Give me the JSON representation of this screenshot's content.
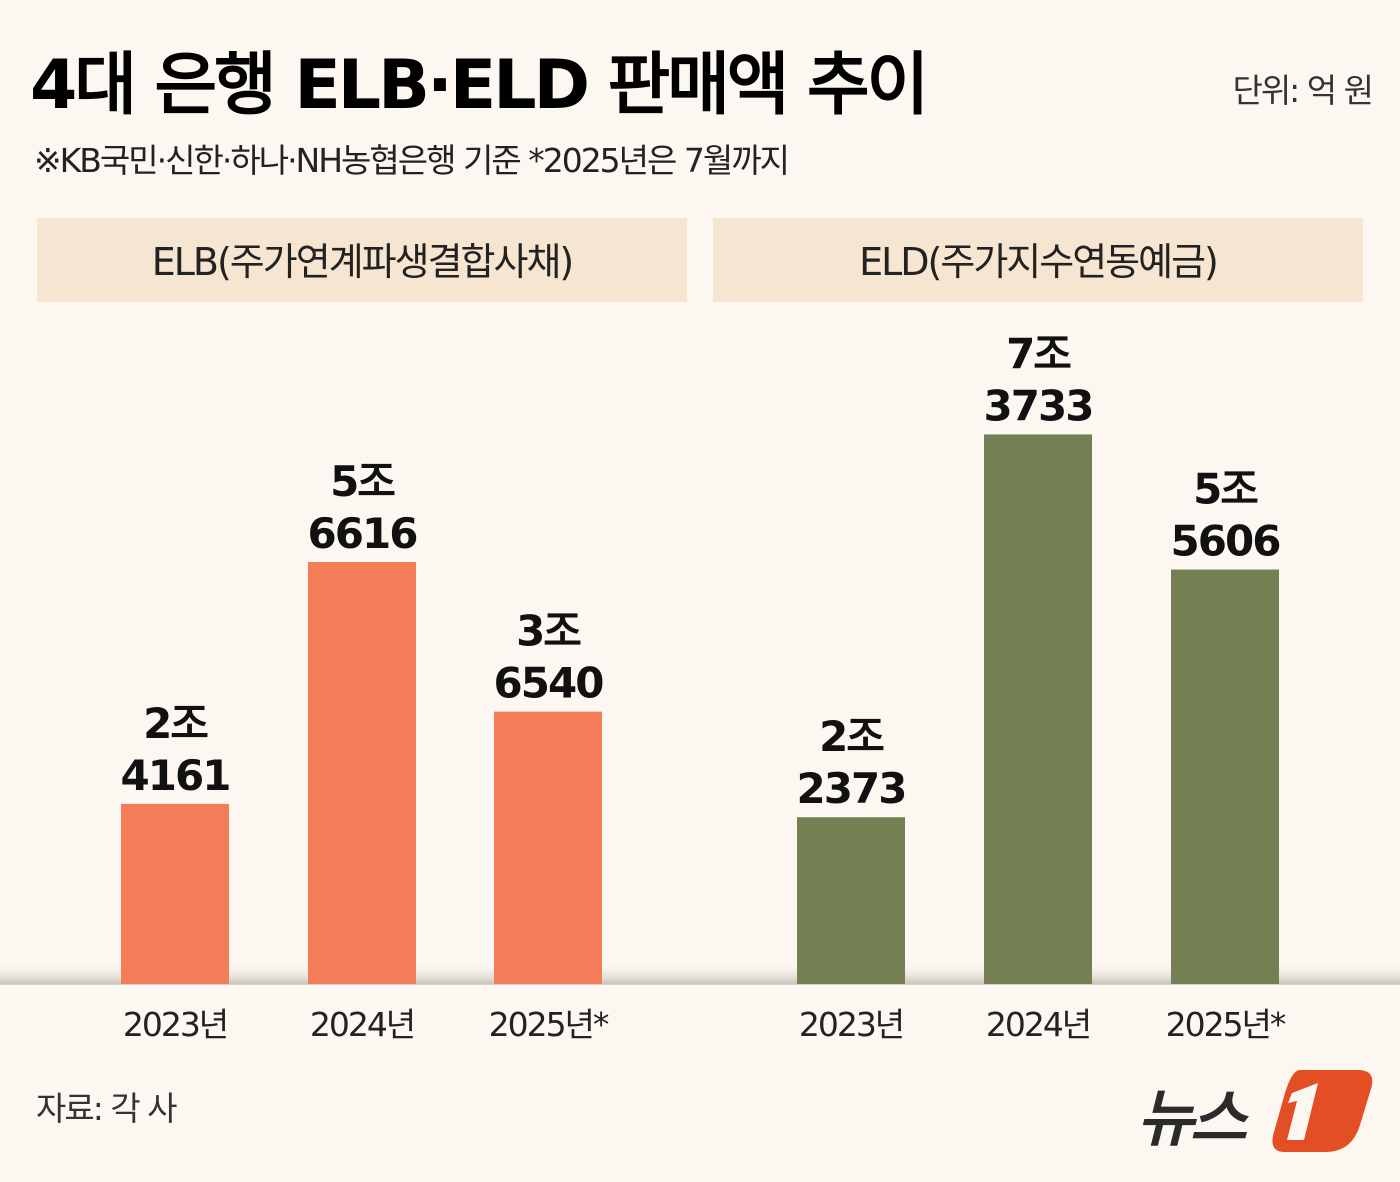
{
  "title": "4대 은행 ELB·ELD 판매액 추이",
  "subtitle": "※KB국민·신한·하나·NH농협은행 기준   *2025년은 7월까지",
  "unit": "단위: 억 원",
  "source": "자료: 각 사",
  "logo": {
    "text": "뉴스1",
    "color": "#e34e24"
  },
  "chart_data": [
    {
      "type": "bar",
      "title": "ELB(주가연계파생결합사채)",
      "categories": [
        "2023년",
        "2024년",
        "2025년*"
      ],
      "values": [
        24161,
        56616,
        36540
      ],
      "data_labels": [
        [
          "2조",
          "4161"
        ],
        [
          "5조",
          "6616"
        ],
        [
          "3조",
          "6540"
        ]
      ],
      "color": "#f47c58",
      "grid": false
    },
    {
      "type": "bar",
      "title": "ELD(주가지수연동예금)",
      "categories": [
        "2023년",
        "2024년",
        "2025년*"
      ],
      "values": [
        22373,
        73733,
        55606
      ],
      "data_labels": [
        [
          "2조",
          "2373"
        ],
        [
          "7조",
          "3733"
        ],
        [
          "5조",
          "5606"
        ]
      ],
      "color": "#758052",
      "grid": false
    }
  ]
}
